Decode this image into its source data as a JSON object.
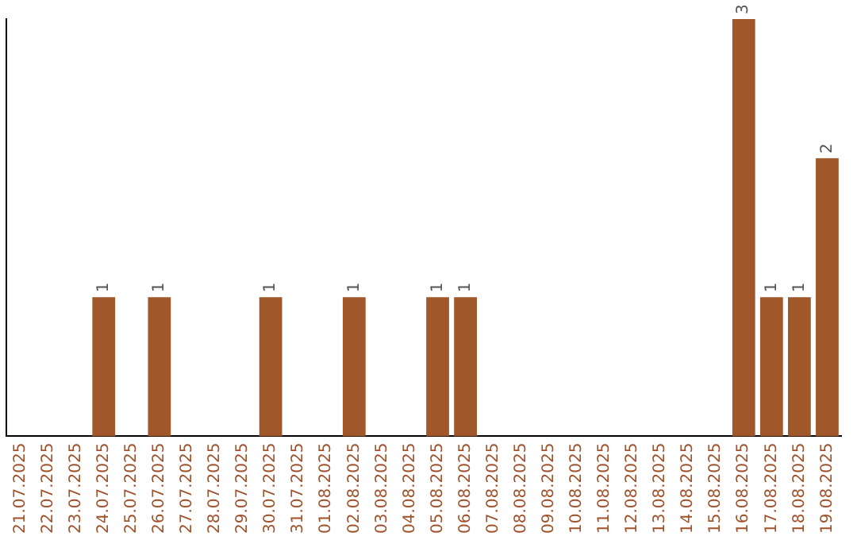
{
  "chart_data": {
    "type": "bar",
    "categories": [
      "21.07.2025",
      "22.07.2025",
      "23.07.2025",
      "24.07.2025",
      "25.07.2025",
      "26.07.2025",
      "27.07.2025",
      "28.07.2025",
      "29.07.2025",
      "30.07.2025",
      "31.07.2025",
      "01.08.2025",
      "02.08.2025",
      "03.08.2025",
      "04.08.2025",
      "05.08.2025",
      "06.08.2025",
      "07.08.2025",
      "08.08.2025",
      "09.08.2025",
      "10.08.2025",
      "11.08.2025",
      "12.08.2025",
      "13.08.2025",
      "14.08.2025",
      "15.08.2025",
      "16.08.2025",
      "17.08.2025",
      "18.08.2025",
      "19.08.2025"
    ],
    "values": [
      0,
      0,
      0,
      1,
      0,
      1,
      0,
      0,
      0,
      1,
      0,
      0,
      1,
      0,
      0,
      1,
      1,
      0,
      0,
      0,
      0,
      0,
      0,
      0,
      0,
      0,
      3,
      1,
      1,
      2
    ],
    "value_labels": [
      null,
      null,
      null,
      "1",
      null,
      "1",
      null,
      null,
      null,
      "1",
      null,
      null,
      "1",
      null,
      null,
      "1",
      "1",
      null,
      null,
      null,
      null,
      null,
      null,
      null,
      null,
      null,
      "3",
      "1",
      "1",
      "2"
    ],
    "color": "#a0572a",
    "grid": false,
    "legend": false,
    "tick_labels": "x"
  }
}
